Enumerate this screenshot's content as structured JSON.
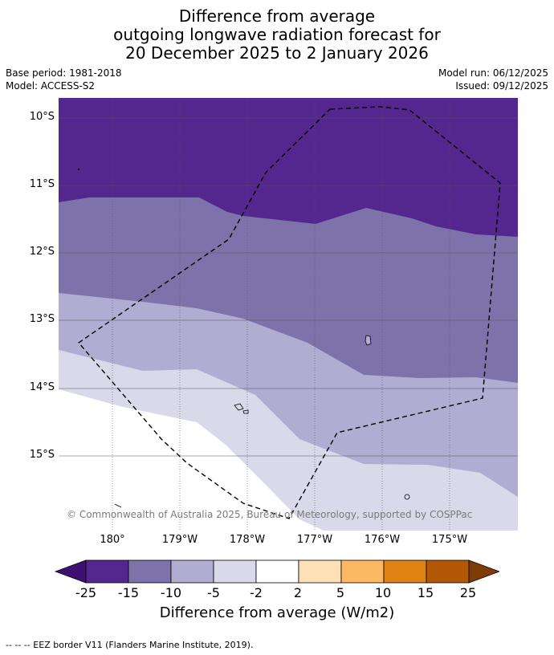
{
  "header": {
    "title_line1": "Difference from average",
    "title_line2": "outgoing longwave radiation forecast for",
    "title_line3": "20 December 2025 to 2 January 2026",
    "base_period": "Base period: 1981-2018",
    "model": "Model: ACCESS-S2",
    "model_run": "Model run: 06/12/2025",
    "issued": "Issued: 09/12/2025"
  },
  "map": {
    "lat_ticks": [
      "10°S",
      "11°S",
      "12°S",
      "13°S",
      "14°S",
      "15°S"
    ],
    "lon_ticks": [
      "180°",
      "179°W",
      "178°W",
      "177°W",
      "176°W",
      "175°W"
    ],
    "copyright": "© Commonwealth of Australia 2025, Bureau of Meteorology, supported by COSPPac"
  },
  "colorbar": {
    "ticks": [
      "-25",
      "-15",
      "-10",
      "-5",
      "-2",
      "2",
      "5",
      "10",
      "15",
      "25"
    ],
    "label": "Difference from average (W/m2)",
    "colors": [
      "#3f0f72",
      "#54278f",
      "#7e72aa",
      "#b1acd2",
      "#d9d9ea",
      "#ffffff",
      "#fee0b6",
      "#fdb863",
      "#e08214",
      "#b35806",
      "#7f3b08"
    ]
  },
  "footer": {
    "legend": "--  --  -- EEZ border V11 (Flanders Marine Institute, 2019)."
  }
}
